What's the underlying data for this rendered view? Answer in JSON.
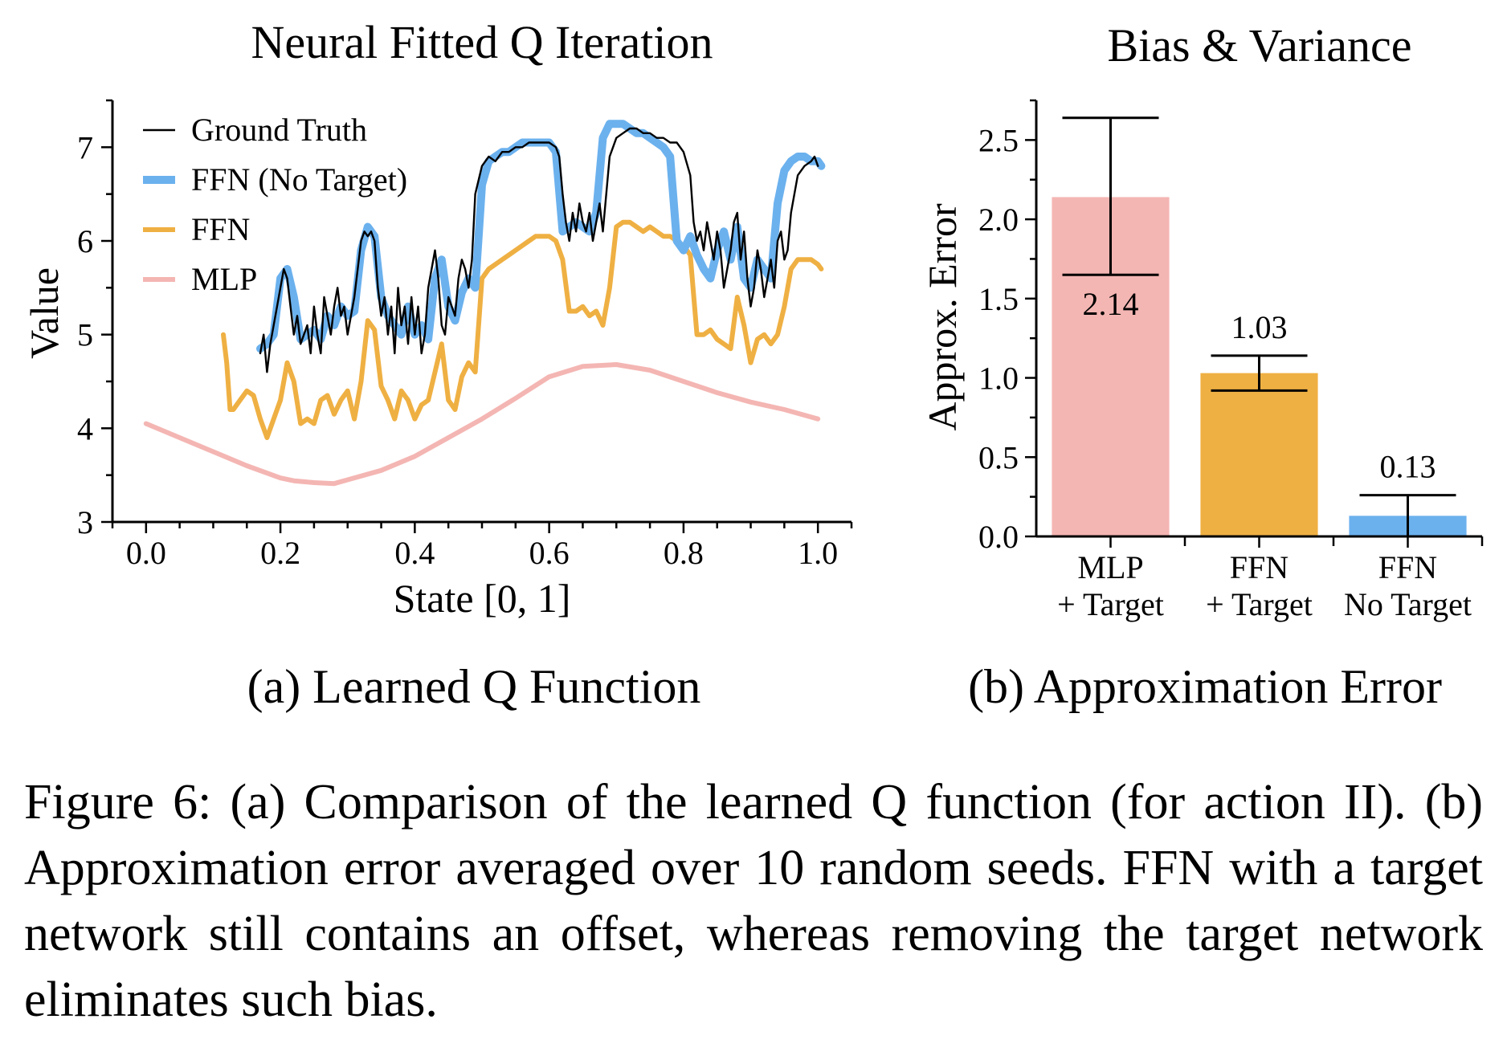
{
  "figure": {
    "caption": "Figure 6: (a) Comparison of the learned Q function (for action II). (b) Approximation error averaged over 10 random seeds.  FFN with a target network still contains an offset, whereas removing the target network eliminates such bias."
  },
  "chart_data": [
    {
      "id": "a",
      "type": "line",
      "title": "Neural Fitted Q Iteration",
      "subcaption": "(a) Learned Q Function",
      "xlabel": "State [0, 1]",
      "ylabel": "Value",
      "xlim": [
        -0.05,
        1.05
      ],
      "ylim": [
        3,
        7.5
      ],
      "xticks": [
        0.0,
        0.2,
        0.4,
        0.6,
        0.8,
        1.0
      ],
      "xtick_labels": [
        "0.0",
        "0.2",
        "0.4",
        "0.6",
        "0.8",
        "1.0"
      ],
      "yticks": [
        3,
        4,
        5,
        6,
        7
      ],
      "ytick_labels": [
        "3",
        "4",
        "5",
        "6",
        "7"
      ],
      "legend": "top-left",
      "grid": false,
      "series": [
        {
          "name": "Ground Truth",
          "color": "#000000",
          "x": [
            0.17,
            0.175,
            0.18,
            0.185,
            0.19,
            0.2,
            0.205,
            0.21,
            0.215,
            0.22,
            0.225,
            0.23,
            0.24,
            0.245,
            0.25,
            0.255,
            0.26,
            0.265,
            0.27,
            0.275,
            0.28,
            0.285,
            0.29,
            0.295,
            0.3,
            0.31,
            0.315,
            0.32,
            0.325,
            0.33,
            0.335,
            0.34,
            0.345,
            0.35,
            0.355,
            0.36,
            0.365,
            0.37,
            0.375,
            0.38,
            0.385,
            0.39,
            0.395,
            0.4,
            0.405,
            0.41,
            0.415,
            0.42,
            0.425,
            0.43,
            0.435,
            0.44,
            0.445,
            0.45,
            0.455,
            0.46,
            0.465,
            0.47,
            0.475,
            0.48,
            0.485,
            0.49,
            0.5,
            0.51,
            0.52,
            0.53,
            0.54,
            0.55,
            0.56,
            0.57,
            0.58,
            0.59,
            0.6,
            0.61,
            0.615,
            0.62,
            0.625,
            0.63,
            0.635,
            0.64,
            0.645,
            0.65,
            0.655,
            0.66,
            0.665,
            0.67,
            0.675,
            0.68,
            0.685,
            0.69,
            0.7,
            0.71,
            0.72,
            0.73,
            0.74,
            0.75,
            0.76,
            0.77,
            0.78,
            0.79,
            0.8,
            0.81,
            0.815,
            0.82,
            0.825,
            0.83,
            0.835,
            0.84,
            0.845,
            0.85,
            0.855,
            0.86,
            0.865,
            0.87,
            0.875,
            0.88,
            0.885,
            0.89,
            0.895,
            0.9,
            0.905,
            0.91,
            0.915,
            0.92,
            0.925,
            0.93,
            0.935,
            0.94,
            0.945,
            0.95,
            0.955,
            0.96,
            0.97,
            0.98,
            0.99,
            0.995,
            1.0
          ],
          "y": [
            4.8,
            5.0,
            4.6,
            4.9,
            5.1,
            5.5,
            5.7,
            5.6,
            5.3,
            5.0,
            5.2,
            4.9,
            5.1,
            4.8,
            5.3,
            5.0,
            4.8,
            5.4,
            5.2,
            5.0,
            5.3,
            5.5,
            5.2,
            5.3,
            5.0,
            5.4,
            5.7,
            6.0,
            6.1,
            6.05,
            6.1,
            6.0,
            5.5,
            5.2,
            5.4,
            5.0,
            5.3,
            4.8,
            5.5,
            5.1,
            5.3,
            4.9,
            5.4,
            5.0,
            5.3,
            4.8,
            5.0,
            5.5,
            5.7,
            5.9,
            5.6,
            5.1,
            5.0,
            5.4,
            5.3,
            5.2,
            5.6,
            5.8,
            5.7,
            5.5,
            5.8,
            6.5,
            6.8,
            6.9,
            6.85,
            6.95,
            6.95,
            7.0,
            7.0,
            7.05,
            7.05,
            7.05,
            7.05,
            7.0,
            6.9,
            6.5,
            6.2,
            6.0,
            6.3,
            6.1,
            6.4,
            6.2,
            6.1,
            6.3,
            6.0,
            6.2,
            6.4,
            6.1,
            6.5,
            6.9,
            7.1,
            7.15,
            7.2,
            7.2,
            7.15,
            7.15,
            7.1,
            7.1,
            7.05,
            7.05,
            6.95,
            6.7,
            6.2,
            6.0,
            6.1,
            5.9,
            6.2,
            6.0,
            5.8,
            6.1,
            5.9,
            5.5,
            5.7,
            5.9,
            6.2,
            6.3,
            5.8,
            6.1,
            5.6,
            5.3,
            5.5,
            5.9,
            5.7,
            5.4,
            5.6,
            5.8,
            5.5,
            6.0,
            6.1,
            5.8,
            5.9,
            6.3,
            6.7,
            6.8,
            6.85,
            6.9,
            6.8
          ]
        },
        {
          "name": "FFN (No Target)",
          "color": "#6bb1ee",
          "x": [
            0.17,
            0.18,
            0.19,
            0.2,
            0.21,
            0.22,
            0.23,
            0.24,
            0.25,
            0.26,
            0.27,
            0.28,
            0.29,
            0.3,
            0.31,
            0.32,
            0.33,
            0.34,
            0.35,
            0.36,
            0.37,
            0.38,
            0.39,
            0.4,
            0.41,
            0.42,
            0.43,
            0.44,
            0.45,
            0.46,
            0.47,
            0.48,
            0.49,
            0.5,
            0.51,
            0.52,
            0.53,
            0.54,
            0.55,
            0.56,
            0.57,
            0.58,
            0.59,
            0.6,
            0.61,
            0.62,
            0.63,
            0.64,
            0.65,
            0.66,
            0.67,
            0.68,
            0.69,
            0.7,
            0.71,
            0.72,
            0.73,
            0.74,
            0.75,
            0.76,
            0.77,
            0.78,
            0.79,
            0.8,
            0.81,
            0.82,
            0.83,
            0.84,
            0.85,
            0.86,
            0.87,
            0.88,
            0.89,
            0.9,
            0.91,
            0.92,
            0.93,
            0.94,
            0.95,
            0.96,
            0.97,
            0.98,
            0.99,
            1.0,
            1.005
          ],
          "y": [
            4.85,
            4.9,
            5.0,
            5.6,
            5.7,
            5.4,
            4.95,
            5.0,
            5.05,
            4.95,
            5.2,
            5.1,
            5.3,
            5.2,
            5.25,
            5.9,
            6.15,
            6.05,
            5.4,
            5.2,
            5.1,
            5.0,
            5.3,
            5.0,
            5.1,
            4.95,
            5.6,
            5.8,
            5.3,
            5.15,
            5.45,
            5.6,
            5.5,
            6.6,
            6.85,
            6.9,
            6.95,
            6.95,
            7.0,
            7.05,
            7.05,
            7.05,
            7.05,
            7.05,
            6.95,
            6.1,
            6.15,
            6.2,
            6.15,
            6.1,
            6.3,
            7.1,
            7.25,
            7.25,
            7.25,
            7.2,
            7.15,
            7.15,
            7.1,
            7.05,
            7.0,
            6.9,
            6.0,
            5.9,
            6.05,
            5.85,
            5.7,
            5.6,
            5.9,
            6.1,
            5.8,
            6.15,
            5.6,
            5.5,
            5.8,
            5.7,
            5.6,
            6.4,
            6.75,
            6.85,
            6.9,
            6.9,
            6.85,
            6.85,
            6.8
          ]
        },
        {
          "name": "FFN",
          "color": "#efb043",
          "x": [
            0.115,
            0.12,
            0.125,
            0.13,
            0.14,
            0.15,
            0.16,
            0.17,
            0.18,
            0.19,
            0.2,
            0.21,
            0.22,
            0.23,
            0.24,
            0.25,
            0.26,
            0.27,
            0.28,
            0.29,
            0.3,
            0.31,
            0.32,
            0.33,
            0.34,
            0.35,
            0.36,
            0.37,
            0.38,
            0.39,
            0.4,
            0.41,
            0.42,
            0.43,
            0.44,
            0.45,
            0.46,
            0.47,
            0.48,
            0.49,
            0.5,
            0.51,
            0.52,
            0.53,
            0.54,
            0.55,
            0.56,
            0.57,
            0.58,
            0.59,
            0.6,
            0.61,
            0.62,
            0.63,
            0.64,
            0.65,
            0.66,
            0.67,
            0.68,
            0.69,
            0.7,
            0.71,
            0.72,
            0.73,
            0.74,
            0.75,
            0.76,
            0.77,
            0.78,
            0.79,
            0.8,
            0.81,
            0.82,
            0.83,
            0.84,
            0.85,
            0.86,
            0.87,
            0.88,
            0.89,
            0.9,
            0.91,
            0.92,
            0.93,
            0.94,
            0.95,
            0.96,
            0.97,
            0.98,
            0.99,
            1.0,
            1.005
          ],
          "y": [
            5.0,
            4.7,
            4.2,
            4.2,
            4.3,
            4.4,
            4.35,
            4.1,
            3.9,
            4.1,
            4.3,
            4.7,
            4.5,
            4.05,
            4.1,
            4.05,
            4.3,
            4.35,
            4.15,
            4.3,
            4.4,
            4.1,
            4.5,
            5.15,
            5.05,
            4.45,
            4.3,
            4.1,
            4.4,
            4.3,
            4.1,
            4.25,
            4.3,
            4.6,
            4.9,
            4.3,
            4.2,
            4.55,
            4.7,
            4.6,
            5.6,
            5.7,
            5.75,
            5.8,
            5.85,
            5.9,
            5.95,
            6.0,
            6.05,
            6.05,
            6.05,
            6.0,
            5.8,
            5.25,
            5.25,
            5.3,
            5.2,
            5.25,
            5.1,
            5.5,
            6.15,
            6.2,
            6.2,
            6.15,
            6.1,
            6.15,
            6.1,
            6.05,
            6.05,
            6.0,
            5.95,
            5.85,
            5.0,
            5.0,
            5.05,
            4.95,
            4.9,
            4.85,
            5.4,
            5.1,
            4.7,
            4.95,
            5.0,
            4.9,
            5.0,
            5.3,
            5.7,
            5.8,
            5.8,
            5.8,
            5.75,
            5.7
          ]
        },
        {
          "name": "MLP",
          "color": "#f4b6b3",
          "x": [
            0.0,
            0.05,
            0.1,
            0.15,
            0.2,
            0.22,
            0.25,
            0.28,
            0.3,
            0.35,
            0.4,
            0.45,
            0.5,
            0.55,
            0.6,
            0.65,
            0.7,
            0.75,
            0.8,
            0.85,
            0.9,
            0.95,
            1.0
          ],
          "y": [
            4.05,
            3.9,
            3.75,
            3.6,
            3.47,
            3.44,
            3.42,
            3.41,
            3.45,
            3.55,
            3.7,
            3.9,
            4.1,
            4.32,
            4.55,
            4.66,
            4.68,
            4.62,
            4.5,
            4.38,
            4.28,
            4.2,
            4.1
          ]
        }
      ]
    },
    {
      "id": "b",
      "type": "bar",
      "title": "Bias & Variance",
      "subcaption": "(b) Approximation Error",
      "xlabel": "",
      "ylabel": "Approx. Error",
      "ylim": [
        0,
        2.75
      ],
      "yticks": [
        0.0,
        0.5,
        1.0,
        1.5,
        2.0,
        2.5
      ],
      "ytick_labels": [
        "0.0",
        "0.5",
        "1.0",
        "1.5",
        "2.0",
        "2.5"
      ],
      "categories": [
        [
          "MLP",
          "+ Target"
        ],
        [
          "FFN",
          "+ Target"
        ],
        [
          "FFN",
          "No Target"
        ]
      ],
      "values": [
        2.14,
        1.03,
        0.13
      ],
      "value_labels": [
        "2.14",
        "1.03",
        "0.13"
      ],
      "error_low": [
        1.65,
        0.92,
        0.0
      ],
      "error_high": [
        2.64,
        1.14,
        0.26
      ],
      "colors": [
        "#f4b6b3",
        "#efb043",
        "#6bb1ee"
      ],
      "grid": false
    }
  ]
}
